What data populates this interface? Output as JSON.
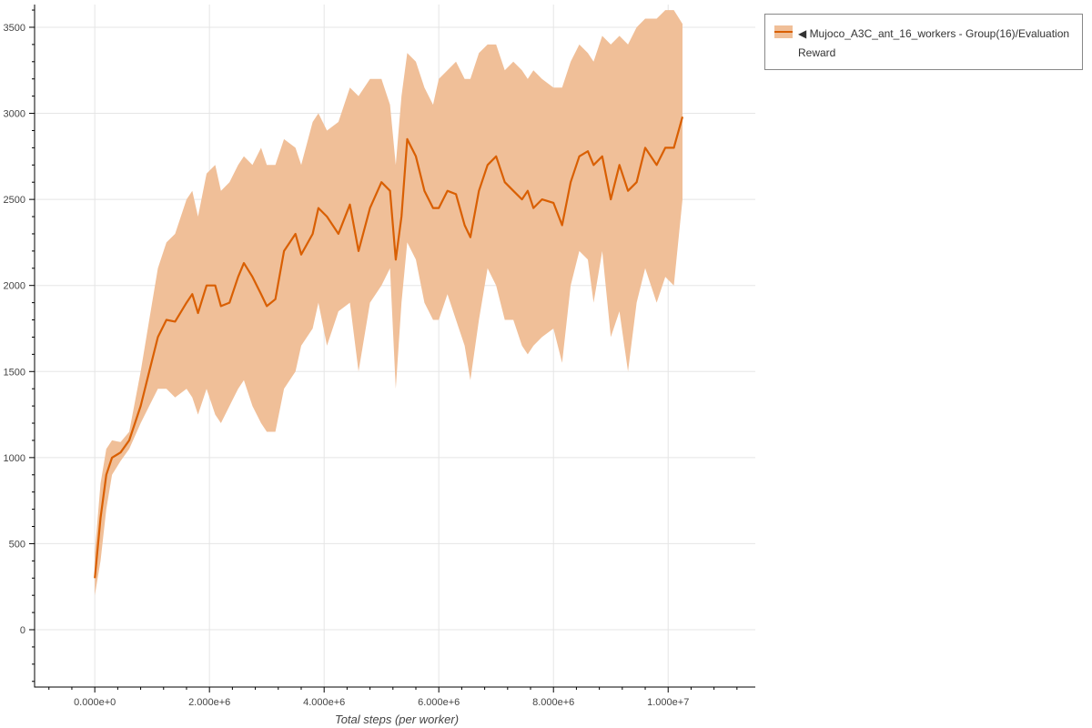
{
  "chart_data": {
    "type": "line",
    "title": "",
    "xlabel": "Total steps (per worker)",
    "ylabel": "",
    "xlim": [
      -1050000,
      11520000
    ],
    "ylim": [
      -333,
      3632
    ],
    "grid": true,
    "legend_position": "top-right-outside",
    "x_ticks": [
      0,
      2000000,
      4000000,
      6000000,
      8000000,
      10000000
    ],
    "x_tick_labels": [
      "0.000e+0",
      "2.000e+6",
      "4.000e+6",
      "6.000e+6",
      "8.000e+6",
      "1.000e+7"
    ],
    "y_ticks": [
      0,
      500,
      1000,
      1500,
      2000,
      2500,
      3000,
      3500
    ],
    "y_tick_labels": [
      "0",
      "500",
      "1000",
      "1500",
      "2000",
      "2500",
      "3000",
      "3500"
    ],
    "colors": {
      "line": "#d95f02",
      "band": "#f0bf98"
    },
    "series": [
      {
        "name": "◀ Mujoco_A3C_ant_16_workers - Group(16)/Evaluation Reward",
        "x": [
          0,
          100000,
          200000,
          300000,
          450000,
          600000,
          800000,
          950000,
          1100000,
          1250000,
          1400000,
          1600000,
          1700000,
          1800000,
          1950000,
          2100000,
          2200000,
          2350000,
          2500000,
          2600000,
          2750000,
          2900000,
          3000000,
          3150000,
          3300000,
          3500000,
          3600000,
          3800000,
          3900000,
          4050000,
          4250000,
          4450000,
          4600000,
          4800000,
          5000000,
          5150000,
          5250000,
          5350000,
          5450000,
          5600000,
          5750000,
          5900000,
          6000000,
          6150000,
          6300000,
          6450000,
          6550000,
          6700000,
          6850000,
          7000000,
          7150000,
          7300000,
          7450000,
          7550000,
          7650000,
          7800000,
          8000000,
          8150000,
          8300000,
          8450000,
          8600000,
          8700000,
          8850000,
          9000000,
          9150000,
          9300000,
          9450000,
          9600000,
          9800000,
          9950000,
          10100000,
          10250000
        ],
        "mean": [
          300,
          650,
          900,
          1000,
          1030,
          1100,
          1300,
          1500,
          1700,
          1800,
          1790,
          1900,
          1950,
          1840,
          2000,
          2000,
          1880,
          1900,
          2050,
          2130,
          2050,
          1950,
          1880,
          1920,
          2200,
          2300,
          2180,
          2300,
          2450,
          2400,
          2300,
          2470,
          2200,
          2450,
          2600,
          2550,
          2150,
          2400,
          2850,
          2750,
          2550,
          2450,
          2450,
          2550,
          2530,
          2350,
          2280,
          2550,
          2700,
          2750,
          2600,
          2550,
          2500,
          2550,
          2450,
          2500,
          2480,
          2350,
          2600,
          2750,
          2780,
          2700,
          2750,
          2500,
          2700,
          2550,
          2600,
          2800,
          2700,
          2800,
          2800,
          2980
        ],
        "upper": [
          450,
          850,
          1050,
          1100,
          1090,
          1150,
          1500,
          1800,
          2100,
          2250,
          2300,
          2500,
          2550,
          2400,
          2650,
          2700,
          2550,
          2600,
          2700,
          2750,
          2700,
          2800,
          2700,
          2700,
          2850,
          2800,
          2700,
          2950,
          3000,
          2900,
          2950,
          3150,
          3100,
          3200,
          3200,
          3050,
          2700,
          3100,
          3350,
          3300,
          3150,
          3050,
          3200,
          3250,
          3300,
          3200,
          3200,
          3350,
          3400,
          3400,
          3250,
          3300,
          3250,
          3200,
          3250,
          3200,
          3150,
          3150,
          3300,
          3400,
          3350,
          3300,
          3450,
          3400,
          3450,
          3400,
          3500,
          3550,
          3550,
          3600,
          3600,
          3520
        ],
        "lower": [
          200,
          400,
          700,
          900,
          980,
          1050,
          1200,
          1300,
          1400,
          1400,
          1350,
          1400,
          1350,
          1250,
          1400,
          1250,
          1200,
          1300,
          1400,
          1450,
          1300,
          1200,
          1150,
          1150,
          1400,
          1500,
          1650,
          1750,
          1900,
          1650,
          1850,
          1900,
          1500,
          1900,
          2000,
          2100,
          1400,
          1900,
          2250,
          2150,
          1900,
          1800,
          1800,
          1950,
          1800,
          1650,
          1450,
          1800,
          2100,
          2000,
          1800,
          1800,
          1650,
          1600,
          1650,
          1700,
          1750,
          1550,
          2000,
          2200,
          2150,
          1900,
          2200,
          1700,
          1850,
          1500,
          1900,
          2100,
          1900,
          2050,
          2000,
          2500
        ]
      }
    ]
  },
  "legend": {
    "entry_label": "◀ Mujoco_A3C_ant_16_workers - Group(16)/Evaluation Reward"
  }
}
